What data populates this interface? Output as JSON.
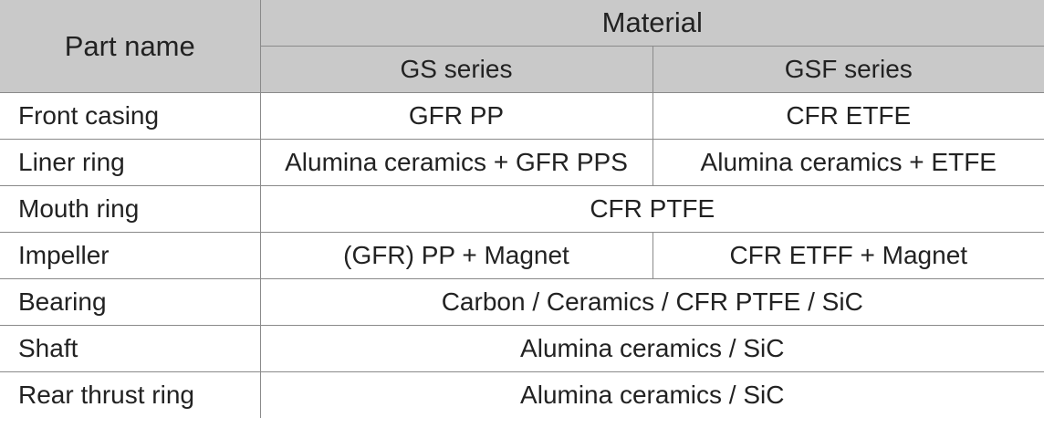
{
  "table": {
    "header": {
      "part": "Part name",
      "material": "Material",
      "series": [
        "GS series",
        "GSF series"
      ]
    },
    "rows": [
      [
        "Front casing",
        "GFR PP",
        "CFR ETFE"
      ],
      [
        "Liner ring",
        "Alumina ceramics + GFR PPS",
        "Alumina ceramics + ETFE"
      ],
      [
        "Mouth ring",
        "CFR PTFE"
      ],
      [
        "Impeller",
        "(GFR) PP + Magnet",
        "CFR ETFF + Magnet"
      ],
      [
        "Bearing",
        "Carbon / Ceramics / CFR PTFE / SiC"
      ],
      [
        "Shaft",
        "Alumina ceramics / SiC"
      ],
      [
        "Rear thrust ring",
        "Alumina ceramics / SiC"
      ]
    ]
  }
}
